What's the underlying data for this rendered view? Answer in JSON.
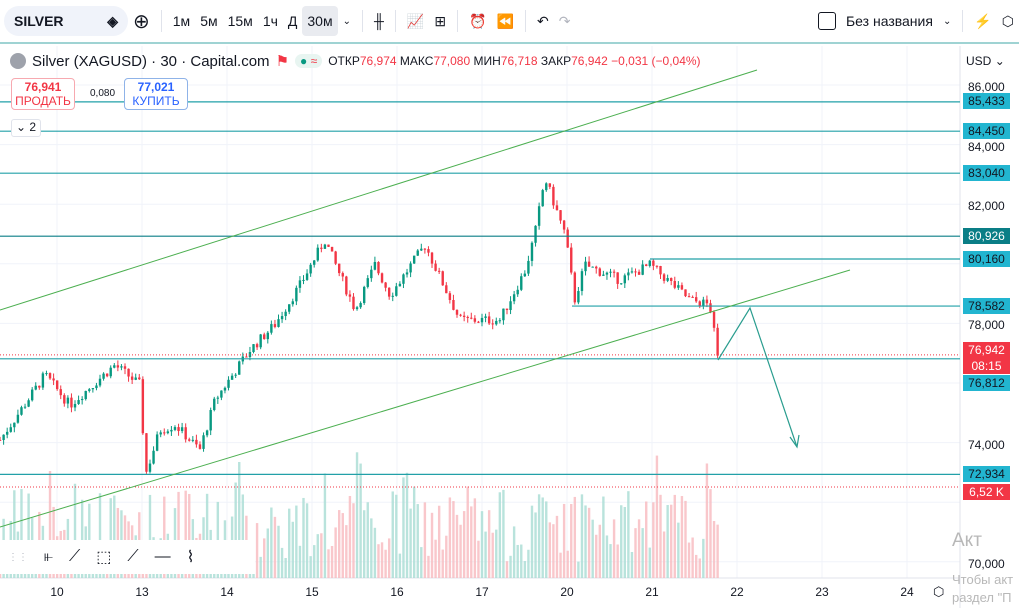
{
  "toolbar": {
    "symbol": "SILVER",
    "intervals": [
      "1м",
      "5м",
      "15м",
      "1ч",
      "Д",
      "30м"
    ],
    "active_interval": "30м",
    "layout_name": "Без названия"
  },
  "legend": {
    "title": "Silver (XAGUSD) · 30 · Capital.com",
    "open_label": "ОТКР",
    "open": "76,974",
    "high_label": "МАКС",
    "high": "77,080",
    "low_label": "МИН",
    "low": "76,718",
    "close_label": "ЗАКР",
    "close": "76,942",
    "change": "−0,031 (−0,04%)",
    "indicators_count": "2"
  },
  "trade": {
    "sell_price": "76,941",
    "sell_label": "ПРОДАТЬ",
    "spread": "0,080",
    "buy_price": "77,021",
    "buy_label": "КУПИТЬ"
  },
  "currency": "USD",
  "colors": {
    "up": "#089981",
    "down": "#f23645",
    "level_line": "#22a0a8",
    "channel": "#4caf50",
    "tag_blue": "#22b5d0",
    "tag_red": "#f23645"
  },
  "price_axis": [
    "86,000",
    "84,000",
    "82,000",
    "78,000",
    "74,000",
    "70,000"
  ],
  "price_tags": [
    {
      "value": "85,433",
      "kind": "level"
    },
    {
      "value": "84,450",
      "kind": "level"
    },
    {
      "value": "83,040",
      "kind": "level"
    },
    {
      "value": "80,926",
      "kind": "level-dark"
    },
    {
      "value": "80,160",
      "kind": "level"
    },
    {
      "value": "78,582",
      "kind": "level"
    },
    {
      "value": "76,942",
      "kind": "last"
    },
    {
      "value": "08:15",
      "kind": "countdown"
    },
    {
      "value": "76,812",
      "kind": "level"
    },
    {
      "value": "72,934",
      "kind": "level"
    },
    {
      "value": "6,52 K",
      "kind": "volume"
    }
  ],
  "time_axis": [
    "10",
    "13",
    "14",
    "15",
    "16",
    "17",
    "20",
    "21",
    "22",
    "23",
    "24"
  ],
  "watermark": [
    "Акт",
    "Чтобы акт",
    "раздел \"П"
  ],
  "chart_data": {
    "type": "candlestick",
    "series_keypoints": [
      [
        -0.67,
        74090
      ],
      [
        -0.14,
        76270
      ],
      [
        0.15,
        75260
      ],
      [
        0.68,
        76600
      ],
      [
        0.98,
        75930
      ],
      [
        1.04,
        72910
      ],
      [
        1.21,
        74420
      ],
      [
        1.39,
        74600
      ],
      [
        1.68,
        73750
      ],
      [
        1.86,
        75430
      ],
      [
        2.27,
        77110
      ],
      [
        2.56,
        77950
      ],
      [
        2.86,
        79290
      ],
      [
        3.15,
        80800
      ],
      [
        3.51,
        78450
      ],
      [
        3.74,
        79960
      ],
      [
        3.92,
        78950
      ],
      [
        4.33,
        80630
      ],
      [
        4.74,
        78110
      ],
      [
        5.21,
        78110
      ],
      [
        5.51,
        79790
      ],
      [
        5.62,
        80970
      ],
      [
        5.74,
        82880
      ],
      [
        5.98,
        80970
      ],
      [
        6.09,
        78780
      ],
      [
        6.21,
        79960
      ],
      [
        6.62,
        79460
      ],
      [
        6.98,
        79960
      ],
      [
        7.45,
        78780
      ],
      [
        7.68,
        78620
      ],
      [
        7.78,
        76770
      ],
      [
        7.8,
        76942
      ]
    ],
    "levels": [
      85433,
      84450,
      83040,
      80926,
      80160,
      78582,
      76812,
      72934
    ],
    "last_price": 76942,
    "ylim": [
      69500,
      87000
    ]
  }
}
